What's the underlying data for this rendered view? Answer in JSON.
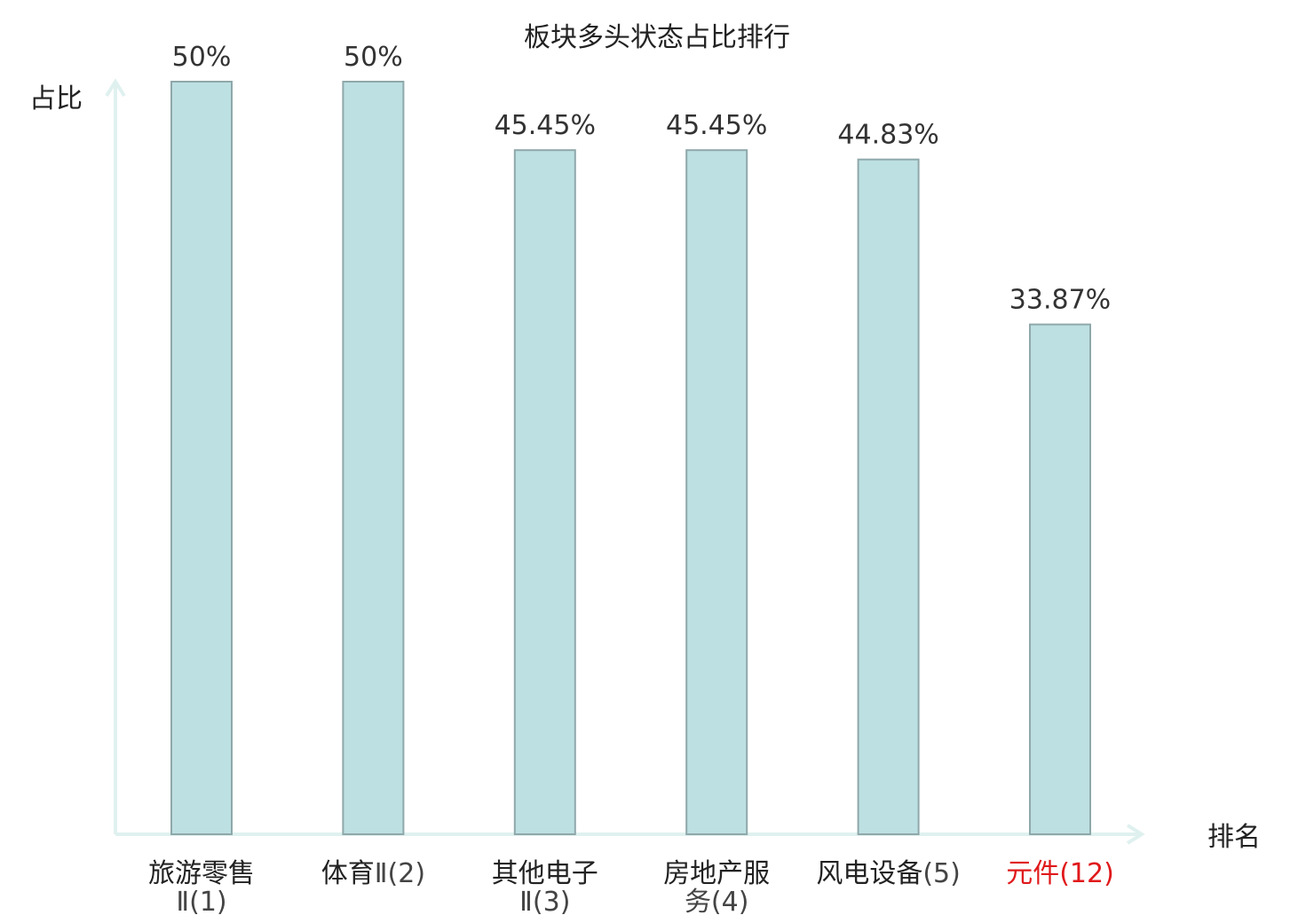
{
  "chart_data": {
    "type": "bar",
    "title": "板块多头状态占比排行",
    "xlabel": "排名",
    "ylabel": "占比",
    "categories": [
      {
        "name_lines": [
          "旅游零售"
        ],
        "rank_line": "Ⅱ(1)",
        "highlight": false
      },
      {
        "name_lines": [
          "体育"
        ],
        "rank_line": "Ⅱ(2)",
        "inline_rank": true,
        "highlight": false
      },
      {
        "name_lines": [
          "其他电子"
        ],
        "rank_line": "Ⅱ(3)",
        "highlight": false
      },
      {
        "name_lines": [
          "房地产服"
        ],
        "rank_line": "务(4)",
        "highlight": false
      },
      {
        "name_lines": [
          "风电设备"
        ],
        "rank_line": "(5)",
        "inline_rank": true,
        "highlight": false
      },
      {
        "name_lines": [
          "元件"
        ],
        "rank_line": "(12)",
        "inline_rank": true,
        "highlight": true
      }
    ],
    "values": [
      50,
      50,
      45.45,
      45.45,
      44.83,
      33.87
    ],
    "value_labels": [
      "50%",
      "50%",
      "45.45%",
      "45.45%",
      "44.83%",
      "33.87%"
    ],
    "ylim": [
      0,
      50
    ],
    "grid": false,
    "colors": {
      "bar_fill": "#bde0e2",
      "bar_stroke": "#8fa8aa",
      "axis": "#dff1ef",
      "highlight_text": "#e0191b",
      "text": "#222222"
    }
  }
}
